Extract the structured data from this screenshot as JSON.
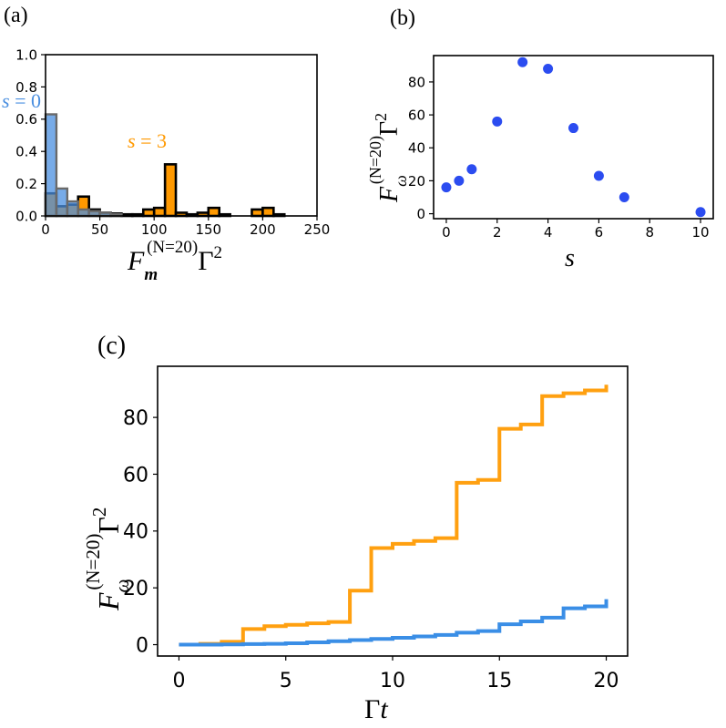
{
  "colors": {
    "blue": "#4a8fe0",
    "blue_dot": "#2b4cf0",
    "orange": "#ff9900",
    "gray": "#6a6a6a",
    "line_blue": "#3a8ee6",
    "line_orange": "#ffa010"
  },
  "chart_data": [
    {
      "panel": "a",
      "panel_label": "(a)",
      "type": "bar",
      "xlabel": "F_m^(N=20) Γ^2",
      "xlabel_parts": {
        "F": "F",
        "sub": "m",
        "sup": "(N=20)",
        "gamma": "Γ",
        "exp": "2"
      },
      "xlim": [
        0,
        250
      ],
      "ylim": [
        0,
        1.0
      ],
      "xticks": [
        "0",
        "50",
        "100",
        "150",
        "200",
        "250"
      ],
      "xtick_values": [
        0,
        50,
        100,
        150,
        200,
        250
      ],
      "yticks": [
        "0.0",
        "0.2",
        "0.4",
        "0.6",
        "0.8",
        "1.0"
      ],
      "ytick_values": [
        0,
        0.2,
        0.4,
        0.6,
        0.8,
        1.0
      ],
      "series": [
        {
          "name": "s = 0",
          "label_var": "s",
          "label_eq": "= 0",
          "color": "blue",
          "bin_width": 10,
          "bins": [
            {
              "x0": 0,
              "y": 0.63
            },
            {
              "x0": 10,
              "y": 0.17
            },
            {
              "x0": 20,
              "y": 0.09
            },
            {
              "x0": 30,
              "y": 0.04
            },
            {
              "x0": 40,
              "y": 0.03
            },
            {
              "x0": 50,
              "y": 0.02
            },
            {
              "x0": 60,
              "y": 0.01
            }
          ]
        },
        {
          "name": "s = 3",
          "label_var": "s",
          "label_eq": "= 3",
          "color": "orange",
          "bin_width": 10,
          "bins": [
            {
              "x0": 0,
              "y": 0.14
            },
            {
              "x0": 10,
              "y": 0.06
            },
            {
              "x0": 20,
              "y": 0.07
            },
            {
              "x0": 30,
              "y": 0.12
            },
            {
              "x0": 40,
              "y": 0.04
            },
            {
              "x0": 50,
              "y": 0.02
            },
            {
              "x0": 60,
              "y": 0.015
            },
            {
              "x0": 70,
              "y": 0.01
            },
            {
              "x0": 80,
              "y": 0.01
            },
            {
              "x0": 90,
              "y": 0.04
            },
            {
              "x0": 100,
              "y": 0.05
            },
            {
              "x0": 110,
              "y": 0.32
            },
            {
              "x0": 120,
              "y": 0.02
            },
            {
              "x0": 130,
              "y": 0.01
            },
            {
              "x0": 140,
              "y": 0.02
            },
            {
              "x0": 150,
              "y": 0.05
            },
            {
              "x0": 160,
              "y": 0.01
            },
            {
              "x0": 190,
              "y": 0.04
            },
            {
              "x0": 200,
              "y": 0.05
            },
            {
              "x0": 210,
              "y": 0.01
            }
          ]
        }
      ]
    },
    {
      "panel": "b",
      "panel_label": "(b)",
      "type": "scatter",
      "xlabel": "s",
      "ylabel": "F_ω^(N=20) Γ^2",
      "ylabel_parts": {
        "F": "F",
        "sub": "ω",
        "sup": "(N=20)",
        "gamma": "Γ",
        "exp": "2"
      },
      "xlim": [
        -0.5,
        10.5
      ],
      "ylim": [
        -3,
        96
      ],
      "xticks": [
        "0",
        "2",
        "4",
        "6",
        "8",
        "10"
      ],
      "xtick_values": [
        0,
        2,
        4,
        6,
        8,
        10
      ],
      "yticks": [
        "0",
        "20",
        "40",
        "60",
        "80"
      ],
      "ytick_values": [
        0,
        20,
        40,
        60,
        80
      ],
      "color": "blue_dot",
      "x": [
        0,
        0.5,
        1,
        2,
        3,
        4,
        5,
        6,
        7,
        10
      ],
      "y": [
        16,
        20,
        27,
        56,
        92,
        88,
        52,
        23,
        10,
        1
      ]
    },
    {
      "panel": "c",
      "panel_label": "(c)",
      "type": "line",
      "xlabel": "Γt",
      "xlabel_parts": {
        "gamma": "Γ",
        "var": "t"
      },
      "ylabel": "F_ω^(N=20) Γ^2",
      "ylabel_parts": {
        "F": "F",
        "sub": "ω",
        "sup": "(N=20)",
        "gamma": "Γ",
        "exp": "2"
      },
      "xlim": [
        -1,
        21
      ],
      "ylim": [
        -4,
        98
      ],
      "xticks": [
        "0",
        "5",
        "10",
        "15",
        "20"
      ],
      "xtick_values": [
        0,
        5,
        10,
        15,
        20
      ],
      "yticks": [
        "0",
        "20",
        "40",
        "60",
        "80"
      ],
      "ytick_values": [
        0,
        20,
        40,
        60,
        80
      ],
      "series": [
        {
          "name": "",
          "color": "line_orange",
          "step": true,
          "x": [
            0,
            1,
            2,
            3,
            4,
            5,
            6,
            7,
            8,
            9,
            10,
            11,
            12,
            13,
            14,
            15,
            16,
            17,
            18,
            19,
            20
          ],
          "y": [
            0,
            0.3,
            1,
            5.5,
            6.5,
            7,
            7.5,
            8,
            19,
            34,
            35.5,
            36.5,
            37.5,
            57,
            58,
            76,
            77.5,
            87.5,
            88.5,
            89.5,
            91.5
          ]
        },
        {
          "name": "",
          "color": "line_blue",
          "step": true,
          "x": [
            0,
            1,
            2,
            3,
            4,
            5,
            6,
            7,
            8,
            9,
            10,
            11,
            12,
            13,
            14,
            15,
            16,
            17,
            18,
            19,
            20
          ],
          "y": [
            0,
            0,
            0.1,
            0.2,
            0.3,
            0.5,
            0.8,
            1.2,
            1.6,
            2,
            2.4,
            2.9,
            3.4,
            4.2,
            4.8,
            7.2,
            8.2,
            9.5,
            12.8,
            13.5,
            16
          ]
        }
      ]
    }
  ]
}
